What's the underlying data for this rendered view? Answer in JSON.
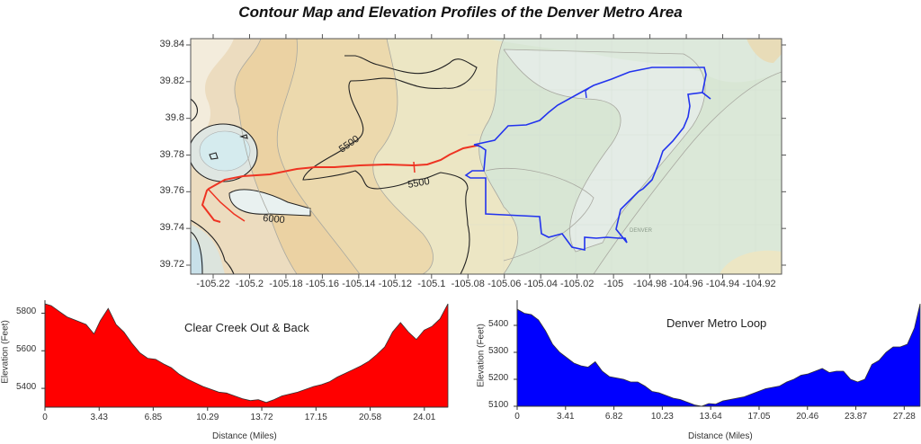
{
  "title": "Contour Map and Elevation Profiles of the Denver Metro Area",
  "map": {
    "y_ticks": [
      "39.84",
      "39.82",
      "39.8",
      "39.78",
      "39.76",
      "39.74",
      "39.72"
    ],
    "x_ticks": [
      "-105.22",
      "-105.2",
      "-105.18",
      "-105.16",
      "-105.14",
      "-105.12",
      "-105.1",
      "-105.08",
      "-105.06",
      "-105.04",
      "-105.02",
      "-105",
      "-104.98",
      "-104.96",
      "-104.94",
      "-104.92"
    ],
    "contour_labels": [
      "5500",
      "5500",
      "6000"
    ],
    "place_label": "DENVER",
    "route_colors": {
      "clear_creek": "#ee3322",
      "denver_loop": "#2233ee"
    }
  },
  "chart_data": [
    {
      "type": "area",
      "title": "Clear Creek Out & Back",
      "xlabel": "Distance (Miles)",
      "ylabel": "Elevation (Feet)",
      "x_ticks": [
        "0",
        "3.43",
        "6.85",
        "10.29",
        "13.72",
        "17.15",
        "20.58",
        "24.01"
      ],
      "y_ticks": [
        "5400",
        "5600",
        "5800"
      ],
      "xlim": [
        0,
        25.5
      ],
      "ylim": [
        5300,
        5850
      ],
      "color": "#ff0000",
      "x": [
        0,
        0.4,
        0.9,
        1.4,
        2.0,
        2.6,
        3.1,
        3.5,
        4.0,
        4.5,
        5.0,
        5.5,
        6.0,
        6.5,
        7.0,
        7.5,
        8.0,
        8.5,
        9.0,
        9.5,
        10.0,
        10.5,
        11.0,
        11.5,
        12.0,
        12.5,
        13.0,
        13.5,
        14.0,
        14.5,
        15.0,
        15.5,
        16.0,
        16.5,
        17.0,
        17.5,
        18.0,
        18.5,
        19.0,
        19.5,
        20.0,
        20.5,
        21.0,
        21.5,
        22.0,
        22.5,
        23.0,
        23.5,
        24.0,
        24.5,
        25.0,
        25.5
      ],
      "values": [
        5850,
        5840,
        5810,
        5780,
        5760,
        5740,
        5690,
        5760,
        5825,
        5740,
        5700,
        5640,
        5590,
        5560,
        5555,
        5530,
        5510,
        5475,
        5450,
        5430,
        5410,
        5395,
        5380,
        5375,
        5360,
        5345,
        5335,
        5340,
        5325,
        5340,
        5360,
        5370,
        5380,
        5395,
        5410,
        5420,
        5435,
        5460,
        5480,
        5500,
        5520,
        5545,
        5580,
        5620,
        5700,
        5750,
        5700,
        5660,
        5710,
        5730,
        5770,
        5850
      ]
    },
    {
      "type": "area",
      "title": "Denver Metro Loop",
      "xlabel": "Distance (Miles)",
      "ylabel": "Elevation (Feet)",
      "x_ticks": [
        "0",
        "3.41",
        "6.82",
        "10.23",
        "13.64",
        "17.05",
        "20.46",
        "23.87",
        "27.28"
      ],
      "y_ticks": [
        "5100",
        "5200",
        "5300",
        "5400"
      ],
      "xlim": [
        0,
        28.4
      ],
      "ylim": [
        5100,
        5480
      ],
      "color": "#0000ff",
      "x": [
        0,
        0.5,
        1.0,
        1.5,
        2.0,
        2.5,
        3.0,
        3.5,
        4.0,
        4.5,
        5.0,
        5.5,
        6.0,
        6.5,
        7.0,
        7.5,
        8.0,
        8.5,
        9.0,
        9.5,
        10.0,
        10.5,
        11.0,
        11.5,
        12.0,
        12.5,
        13.0,
        13.5,
        14.0,
        14.5,
        15.0,
        15.5,
        16.0,
        16.5,
        17.0,
        17.5,
        18.0,
        18.5,
        19.0,
        19.5,
        20.0,
        20.5,
        21.0,
        21.5,
        22.0,
        22.5,
        23.0,
        23.5,
        24.0,
        24.5,
        25.0,
        25.5,
        26.0,
        26.5,
        27.0,
        27.5,
        28.0,
        28.4
      ],
      "values": [
        5460,
        5445,
        5440,
        5420,
        5380,
        5330,
        5300,
        5280,
        5260,
        5250,
        5245,
        5265,
        5230,
        5210,
        5205,
        5200,
        5190,
        5190,
        5175,
        5155,
        5150,
        5140,
        5130,
        5125,
        5115,
        5105,
        5100,
        5110,
        5108,
        5120,
        5125,
        5130,
        5135,
        5145,
        5155,
        5165,
        5170,
        5175,
        5190,
        5200,
        5215,
        5220,
        5230,
        5240,
        5225,
        5230,
        5230,
        5200,
        5190,
        5200,
        5255,
        5270,
        5300,
        5320,
        5320,
        5330,
        5390,
        5480
      ]
    }
  ]
}
